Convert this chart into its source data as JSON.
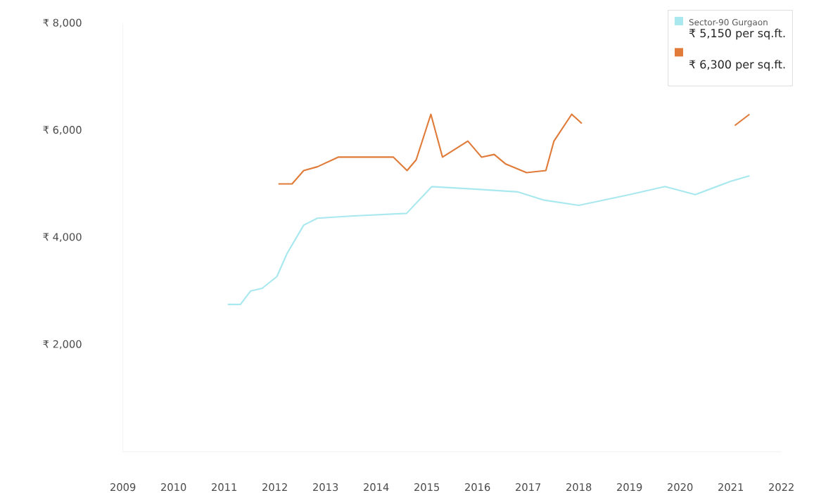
{
  "chart_data": {
    "type": "line",
    "xlim": [
      2009,
      2022
    ],
    "ylim": [
      0,
      8000
    ],
    "xticks": [
      2009,
      2010,
      2011,
      2012,
      2013,
      2014,
      2015,
      2016,
      2017,
      2018,
      2019,
      2020,
      2021,
      2022
    ],
    "yticks": [
      {
        "value": 2000,
        "label": "₹ 2,000"
      },
      {
        "value": 4000,
        "label": "₹ 4,000"
      },
      {
        "value": 6000,
        "label": "₹ 6,000"
      },
      {
        "value": 8000,
        "label": "₹ 8,000"
      }
    ],
    "grid": false,
    "legend": "top right",
    "series": [
      {
        "name": "Sector-90 Gurgaon",
        "color": "#a8e8ee",
        "x": [
          2011.07,
          2011.32,
          2011.52,
          2011.75,
          2012.04,
          2012.24,
          2012.57,
          2012.84,
          2013.5,
          2014.6,
          2015.1,
          2016.0,
          2016.8,
          2017.3,
          2018.0,
          2019.0,
          2019.7,
          2020.3,
          2021.0,
          2021.37
        ],
        "values": [
          2750,
          2750,
          3000,
          3050,
          3270,
          3700,
          4230,
          4360,
          4400,
          4450,
          4950,
          4900,
          4850,
          4700,
          4600,
          4800,
          4950,
          4800,
          5050,
          5150
        ]
      },
      {
        "color": "#e07b39",
        "x": [
          2012.07,
          2012.34,
          2012.57,
          2012.84,
          2013.25,
          2014.34,
          2014.61,
          2014.79,
          2015.08,
          2015.31,
          2015.81,
          2016.08,
          2016.33,
          2016.56,
          2016.97,
          2017.35,
          2017.51,
          2017.86,
          2018.06,
          2019.5,
          2021.08,
          2021.37
        ],
        "values": [
          5000,
          5000,
          5250,
          5320,
          5500,
          5500,
          5250,
          5450,
          6300,
          5500,
          5800,
          5500,
          5550,
          5370,
          5210,
          5250,
          5800,
          6300,
          6130,
          null,
          6090,
          6300
        ]
      }
    ],
    "annotations": [
      "₹ 5,150 per sq.ft.",
      "₹ 6,300 per sq.ft."
    ]
  }
}
